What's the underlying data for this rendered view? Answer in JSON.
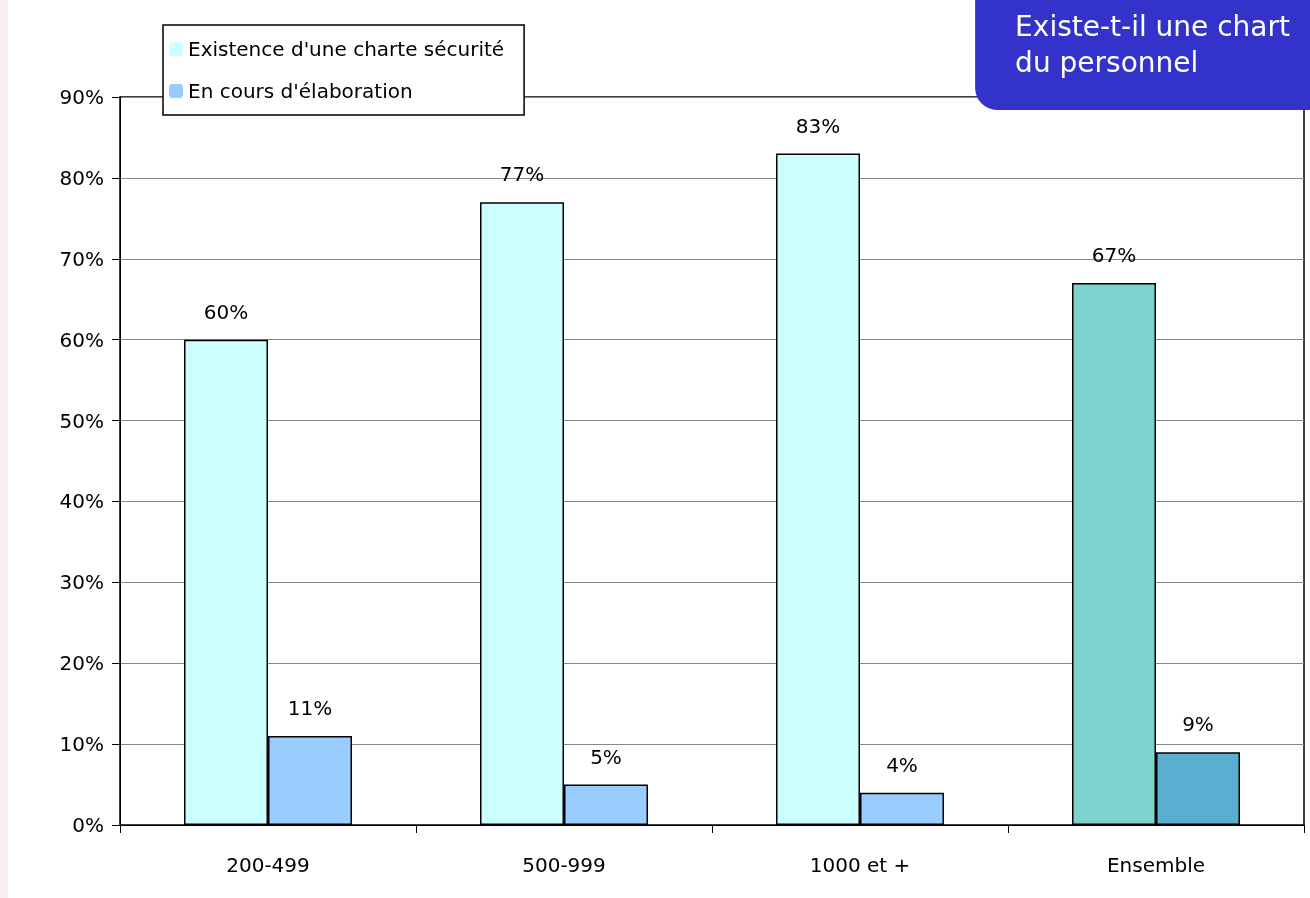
{
  "chart_data": {
    "type": "bar",
    "title": "Existe-t-il une chart\ndu personnel",
    "categories": [
      "200-499",
      "500-999",
      "1000 et +",
      "Ensemble"
    ],
    "series": [
      {
        "name": "Existence d'une charte sécurité",
        "color": "#ccffff",
        "colors": [
          "#ccffff",
          "#ccffff",
          "#ccffff",
          "#7fd3cf"
        ],
        "values": [
          60,
          77,
          83,
          67
        ],
        "value_labels": [
          "60%",
          "77%",
          "83%",
          "67%"
        ]
      },
      {
        "name": "En cours d'élaboration",
        "color": "#99ccff",
        "colors": [
          "#99ccff",
          "#99ccff",
          "#99ccff",
          "#5aaed0"
        ],
        "values": [
          11,
          5,
          4,
          9
        ],
        "value_labels": [
          "11%",
          "5%",
          "4%",
          "9%"
        ]
      }
    ],
    "ylim": [
      0,
      90
    ],
    "yticks": [
      {
        "value": 0,
        "label": "0%"
      },
      {
        "value": 10,
        "label": "10%"
      },
      {
        "value": 20,
        "label": "20%"
      },
      {
        "value": 30,
        "label": "30%"
      },
      {
        "value": 40,
        "label": "40%"
      },
      {
        "value": 50,
        "label": "50%"
      },
      {
        "value": 60,
        "label": "60%"
      },
      {
        "value": 70,
        "label": "70%"
      },
      {
        "value": 80,
        "label": "80%"
      },
      {
        "value": 90,
        "label": "90%"
      }
    ],
    "grid": "y",
    "legend": "top left"
  }
}
